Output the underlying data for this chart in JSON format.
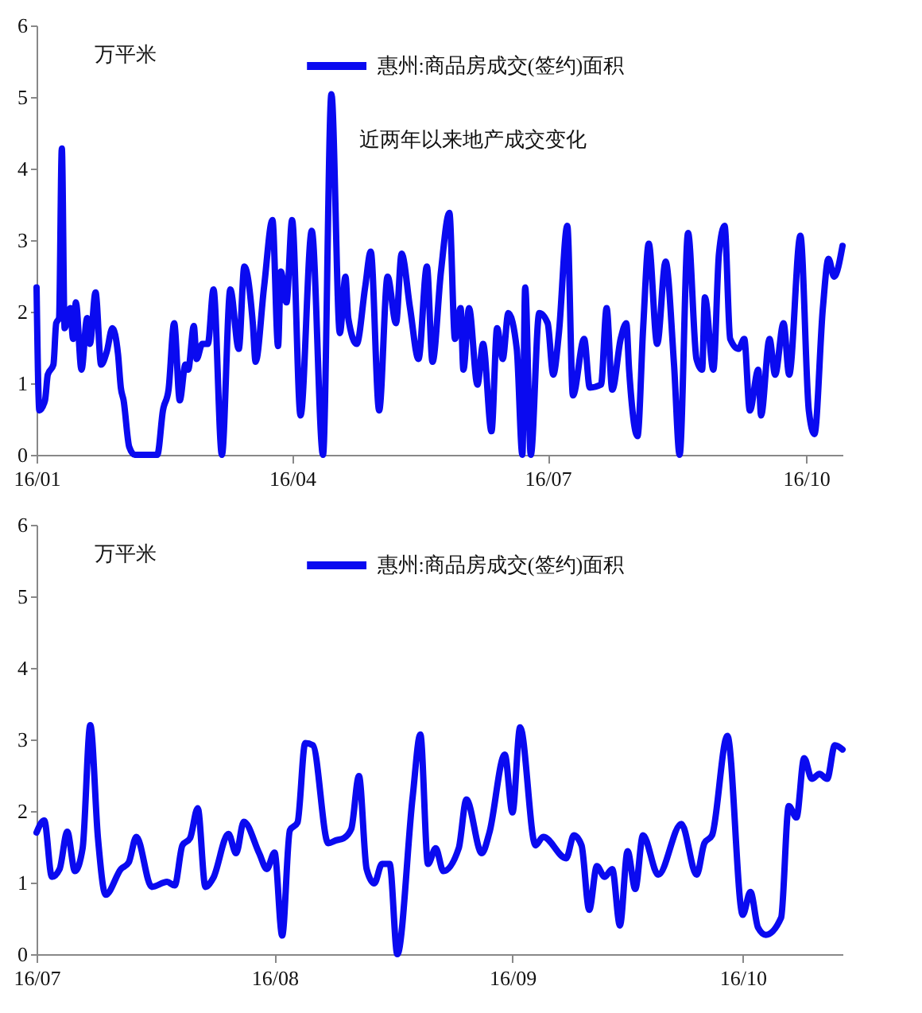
{
  "chart_data": [
    {
      "type": "line",
      "ylabel": "万平米",
      "annotations": [
        "近两年以来地产成交变化"
      ],
      "legend": "top",
      "xlim": [
        "--01-01",
        "--10-14"
      ],
      "xticks": [
        {
          "value": "--01-01",
          "label": "16/01"
        },
        {
          "value": "--04-01",
          "label": "16/04"
        },
        {
          "value": "--07-01",
          "label": "16/07"
        },
        {
          "value": "--10-01",
          "label": "16/10"
        }
      ],
      "ylim": [
        0,
        6
      ],
      "yticks": [
        0,
        1,
        2,
        3,
        4,
        5,
        6
      ],
      "x": [
        "--01-01",
        "--01-02",
        "--01-04",
        "--01-05",
        "--01-07",
        "--01-08",
        "--01-09",
        "--01-10",
        "--01-11",
        "--01-13",
        "--01-14",
        "--01-15",
        "--01-17",
        "--01-19",
        "--01-20",
        "--01-22",
        "--01-24",
        "--01-26",
        "--01-28",
        "--01-30",
        "--01-31",
        "--02-01",
        "--02-03",
        "--02-05",
        "--02-13",
        "--02-15",
        "--02-17",
        "--02-19",
        "--02-21",
        "--02-23",
        "--02-24",
        "--02-26",
        "--02-27",
        "--02-29",
        "--03-02",
        "--03-04",
        "--03-07",
        "--03-10",
        "--03-13",
        "--03-15",
        "--03-18",
        "--03-19",
        "--03-22",
        "--03-25",
        "--03-27",
        "--03-28",
        "--03-30",
        "--04-01",
        "--04-04",
        "--04-08",
        "--04-12",
        "--04-15",
        "--04-18",
        "--04-20",
        "--04-21",
        "--04-24",
        "--04-27",
        "--04-29",
        "--05-02",
        "--05-05",
        "--05-08",
        "--05-10",
        "--05-13",
        "--05-16",
        "--05-19",
        "--05-21",
        "--05-24",
        "--05-27",
        "--05-29",
        "--05-31",
        "--06-01",
        "--06-03",
        "--06-06",
        "--06-08",
        "--06-11",
        "--06-13",
        "--06-15",
        "--06-17",
        "--06-20",
        "--06-22",
        "--06-23",
        "--06-25",
        "--06-28",
        "--07-01",
        "--07-03",
        "--07-05",
        "--07-08",
        "--07-10",
        "--07-14",
        "--07-16",
        "--07-20",
        "--07-22",
        "--07-24",
        "--07-27",
        "--07-29",
        "--07-30",
        "--08-02",
        "--08-04",
        "--08-06",
        "--08-09",
        "--08-12",
        "--08-15",
        "--08-17",
        "--08-20",
        "--08-23",
        "--08-25",
        "--08-26",
        "--08-29",
        "--08-31",
        "--09-02",
        "--09-04",
        "--09-07",
        "--09-09",
        "--09-11",
        "--09-14",
        "--09-15",
        "--09-18",
        "--09-20",
        "--09-23",
        "--09-25",
        "--09-29",
        "--10-02",
        "--10-04",
        "--10-07",
        "--10-09",
        "--10-11",
        "--10-14"
      ],
      "series": [
        {
          "name": "惠州:商品房成交(签约)面积",
          "color": "#0a0af0",
          "values": [
            2.34,
            0.62,
            0.76,
            1.12,
            1.26,
            1.84,
            1.91,
            4.28,
            1.77,
            2.05,
            1.62,
            2.13,
            1.19,
            1.91,
            1.55,
            2.27,
            1.26,
            1.44,
            1.77,
            1.41,
            0.94,
            0.76,
            0.11,
            0,
            0,
            0.62,
            0.91,
            1.84,
            0.76,
            1.26,
            1.19,
            1.8,
            1.34,
            1.55,
            1.55,
            2.31,
            0,
            2.31,
            1.48,
            2.63,
            1.84,
            1.3,
            2.34,
            3.28,
            1.52,
            2.56,
            2.13,
            3.28,
            0.55,
            3.13,
            0,
            5.04,
            1.7,
            2.49,
            1.91,
            1.55,
            2.34,
            2.84,
            0.62,
            2.49,
            1.84,
            2.81,
            2.05,
            1.34,
            2.63,
            1.3,
            2.56,
            3.38,
            1.62,
            2.05,
            1.19,
            2.05,
            0.98,
            1.55,
            0.33,
            1.77,
            1.34,
            1.98,
            1.48,
            0,
            2.34,
            0,
            1.98,
            1.84,
            1.12,
            1.7,
            3.2,
            0.83,
            1.62,
            0.94,
            0.98,
            2.05,
            0.91,
            1.62,
            1.84,
            1.19,
            0.26,
            1.77,
            2.95,
            1.55,
            2.7,
            1.26,
            0,
            3.1,
            1.34,
            1.19,
            2.2,
            1.19,
            2.81,
            3.2,
            1.62,
            1.48,
            1.62,
            0.62,
            1.19,
            0.55,
            1.62,
            1.12,
            1.84,
            1.12,
            3.06,
            0.62,
            0.29,
            2.05,
            2.74,
            2.49,
            2.92
          ]
        }
      ]
    },
    {
      "type": "line",
      "ylabel": "万平米",
      "legend": "top",
      "xlim": [
        "--07-01",
        "--10-14"
      ],
      "xticks": [
        {
          "value": "--07-01",
          "label": "16/07"
        },
        {
          "value": "--08-01",
          "label": "16/08"
        },
        {
          "value": "--09-01",
          "label": "16/09"
        },
        {
          "value": "--10-01",
          "label": "16/10"
        }
      ],
      "ylim": [
        0,
        6
      ],
      "yticks": [
        0,
        1,
        2,
        3,
        4,
        5,
        6
      ],
      "x": [
        "--07-01",
        "--07-02",
        "--07-03",
        "--07-04",
        "--07-05",
        "--07-06",
        "--07-07",
        "--07-08",
        "--07-09",
        "--07-10",
        "--07-12",
        "--07-13",
        "--07-14",
        "--07-16",
        "--07-18",
        "--07-19",
        "--07-20",
        "--07-21",
        "--07-22",
        "--07-23",
        "--07-24",
        "--07-26",
        "--07-27",
        "--07-28",
        "--07-30",
        "--07-31",
        "--08-01",
        "--08-02",
        "--08-03",
        "--08-04",
        "--08-05",
        "--08-06",
        "--08-08",
        "--08-09",
        "--08-10",
        "--08-11",
        "--08-12",
        "--08-13",
        "--08-14",
        "--08-15",
        "--08-16",
        "--08-17",
        "--08-19",
        "--08-20",
        "--08-21",
        "--08-22",
        "--08-23",
        "--08-25",
        "--08-26",
        "--08-28",
        "--08-29",
        "--08-31",
        "--09-01",
        "--09-02",
        "--09-04",
        "--09-05",
        "--09-08",
        "--09-09",
        "--09-10",
        "--09-11",
        "--09-12",
        "--09-13",
        "--09-14",
        "--09-15",
        "--09-16",
        "--09-17",
        "--09-18",
        "--09-20",
        "--09-23",
        "--09-25",
        "--09-26",
        "--09-27",
        "--09-29",
        "--10-01",
        "--10-02",
        "--10-03",
        "--10-04",
        "--10-06",
        "--10-07",
        "--10-08",
        "--10-09",
        "--10-10",
        "--10-11",
        "--10-12",
        "--10-13",
        "--10-14"
      ],
      "series": [
        {
          "name": "惠州:商品房成交(签约)面积",
          "color": "#0a0af0",
          "values": [
            1.7,
            1.87,
            1.08,
            1.19,
            1.71,
            1.16,
            1.48,
            3.2,
            1.62,
            0.83,
            1.19,
            1.28,
            1.64,
            0.94,
            1.01,
            0.96,
            1.52,
            1.62,
            2.04,
            0.94,
            1.06,
            1.68,
            1.41,
            1.85,
            1.41,
            1.19,
            1.42,
            0.26,
            1.73,
            1.84,
            2.95,
            2.92,
            1.55,
            1.59,
            1.62,
            1.75,
            2.49,
            1.19,
            0.99,
            1.26,
            1.26,
            0,
            2.2,
            3.07,
            1.26,
            1.48,
            1.16,
            1.48,
            2.16,
            1.41,
            1.7,
            2.79,
            1.98,
            3.17,
            1.52,
            1.64,
            1.34,
            1.66,
            1.52,
            0.62,
            1.23,
            1.08,
            1.19,
            0.4,
            1.44,
            0.91,
            1.66,
            1.11,
            1.82,
            1.11,
            1.55,
            1.66,
            3.05,
            0.55,
            0.87,
            0.37,
            0.27,
            0.51,
            2.07,
            1.91,
            2.74,
            2.45,
            2.52,
            2.45,
            2.92,
            2.86
          ]
        }
      ]
    }
  ]
}
